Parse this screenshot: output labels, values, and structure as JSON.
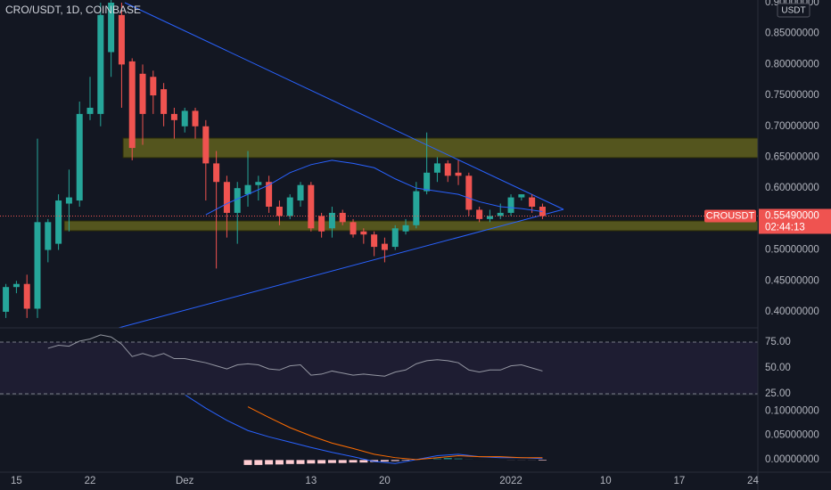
{
  "header": {
    "symbol_info": "CRO/USDT, 1D, COINBASE",
    "quote_currency": "USDT"
  },
  "chart_data": [
    {
      "type": "candlestick",
      "x": [
        -1,
        0,
        1,
        2,
        3,
        4,
        5,
        6,
        7,
        8,
        9,
        10,
        11,
        12,
        13,
        14,
        15,
        16,
        17,
        18,
        19,
        20,
        21,
        22,
        23,
        24,
        25,
        26,
        27,
        28,
        29,
        30,
        31,
        32,
        33,
        34,
        35,
        36,
        37,
        38,
        39,
        40,
        41,
        42,
        43,
        44,
        45,
        46,
        47,
        48,
        49,
        50
      ],
      "open": [
        0.4,
        0.44,
        0.445,
        0.405,
        0.5,
        0.51,
        0.575,
        0.58,
        0.72,
        0.72,
        0.82,
        0.88,
        0.805,
        0.785,
        0.78,
        0.76,
        0.72,
        0.7,
        0.725,
        0.7,
        0.64,
        0.61,
        0.56,
        0.59,
        0.605,
        0.61,
        0.57,
        0.555,
        0.58,
        0.605,
        0.555,
        0.535,
        0.56,
        0.545,
        0.53,
        0.525,
        0.51,
        0.505,
        0.53,
        0.54,
        0.595,
        0.625,
        0.64,
        0.625,
        0.62,
        0.565,
        0.55,
        0.555,
        0.56,
        0.585,
        0.585,
        0.57
      ],
      "high": [
        0.445,
        0.45,
        0.46,
        0.68,
        0.55,
        0.59,
        0.63,
        0.74,
        0.78,
        0.9,
        0.91,
        0.9,
        0.81,
        0.8,
        0.79,
        0.77,
        0.73,
        0.73,
        0.73,
        0.71,
        0.66,
        0.62,
        0.61,
        0.66,
        0.62,
        0.62,
        0.58,
        0.59,
        0.61,
        0.61,
        0.56,
        0.57,
        0.565,
        0.55,
        0.535,
        0.53,
        0.52,
        0.54,
        0.55,
        0.61,
        0.69,
        0.65,
        0.645,
        0.645,
        0.625,
        0.57,
        0.565,
        0.575,
        0.59,
        0.59,
        0.59,
        0.575
      ],
      "low": [
        0.39,
        0.43,
        0.39,
        0.39,
        0.48,
        0.5,
        0.53,
        0.57,
        0.71,
        0.7,
        0.78,
        0.73,
        0.645,
        0.67,
        0.72,
        0.7,
        0.68,
        0.69,
        0.68,
        0.58,
        0.47,
        0.52,
        0.51,
        0.57,
        0.58,
        0.56,
        0.54,
        0.55,
        0.57,
        0.53,
        0.52,
        0.52,
        0.54,
        0.52,
        0.51,
        0.49,
        0.48,
        0.5,
        0.525,
        0.535,
        0.59,
        0.61,
        0.61,
        0.605,
        0.555,
        0.545,
        0.545,
        0.55,
        0.555,
        0.58,
        0.56,
        0.55
      ],
      "close": [
        0.44,
        0.445,
        0.405,
        0.545,
        0.545,
        0.58,
        0.585,
        0.72,
        0.73,
        0.88,
        0.9,
        0.8,
        0.665,
        0.72,
        0.75,
        0.72,
        0.71,
        0.725,
        0.7,
        0.64,
        0.61,
        0.56,
        0.6,
        0.605,
        0.61,
        0.57,
        0.555,
        0.585,
        0.605,
        0.535,
        0.53,
        0.56,
        0.545,
        0.525,
        0.525,
        0.505,
        0.5,
        0.535,
        0.54,
        0.595,
        0.625,
        0.64,
        0.62,
        0.62,
        0.565,
        0.55,
        0.555,
        0.56,
        0.585,
        0.59,
        0.57,
        0.5549
      ],
      "up_color": "#26a69a",
      "down_color": "#ef5350",
      "overlay": {
        "color": "#2962ff",
        "x": [
          18,
          20,
          22,
          24,
          26,
          28,
          30,
          32,
          34,
          36,
          38,
          40,
          42,
          44,
          46,
          48,
          50
        ],
        "values": [
          0.557,
          0.575,
          0.59,
          0.605,
          0.625,
          0.638,
          0.645,
          0.64,
          0.633,
          0.615,
          0.6,
          0.595,
          0.59,
          0.578,
          0.57,
          0.567,
          0.562
        ]
      },
      "last_price": {
        "value": 0.5549,
        "label": "0.55490000"
      },
      "price_tag": "CROUSDT",
      "countdown": "02:44:13",
      "xlim": [
        -1.56,
        70.47
      ],
      "ylim": [
        0.374,
        0.9043
      ],
      "xticks": [
        {
          "value": 0,
          "label": "15"
        },
        {
          "value": 7,
          "label": "22"
        },
        {
          "value": 16,
          "label": "Dez"
        },
        {
          "value": 28,
          "label": "13"
        },
        {
          "value": 35,
          "label": "20"
        },
        {
          "value": 47,
          "label": "2022"
        },
        {
          "value": 56,
          "label": "10"
        },
        {
          "value": 63,
          "label": "17"
        },
        {
          "value": 70,
          "label": "24"
        }
      ],
      "yticks": [
        {
          "value": 0.4,
          "label": "0.40000000"
        },
        {
          "value": 0.45,
          "label": "0.45000000"
        },
        {
          "value": 0.5,
          "label": "0.50000000"
        },
        {
          "value": 0.55,
          "label": "0.55000000"
        },
        {
          "value": 0.6,
          "label": "0.60000000"
        },
        {
          "value": 0.65,
          "label": "0.65000000"
        },
        {
          "value": 0.7,
          "label": "0.70000000"
        },
        {
          "value": 0.75,
          "label": "0.75000000"
        },
        {
          "value": 0.8,
          "label": "0.80000000"
        },
        {
          "value": 0.85,
          "label": "0.85000000"
        },
        {
          "value": 0.9,
          "label": "0.90000000"
        }
      ]
    },
    {
      "type": "line",
      "x": [
        3,
        4,
        5,
        6,
        7,
        8,
        9,
        10,
        11,
        12,
        13,
        14,
        15,
        16,
        17,
        18,
        19,
        20,
        21,
        22,
        23,
        24,
        25,
        26,
        27,
        28,
        29,
        30,
        31,
        32,
        33,
        34,
        35,
        36,
        37,
        38,
        39,
        40,
        41,
        42,
        43,
        44,
        45,
        46,
        47,
        48,
        49,
        50
      ],
      "values": [
        69,
        72,
        71,
        76,
        78,
        82,
        80,
        73,
        61,
        64,
        61,
        64,
        59,
        59,
        57,
        55,
        52,
        49,
        53,
        54,
        53,
        49,
        48,
        52,
        53,
        43,
        44,
        47,
        45,
        43,
        44,
        43,
        42,
        46,
        48,
        54,
        57,
        58,
        57,
        55,
        48,
        46,
        48,
        48,
        52,
        53,
        50,
        47
      ],
      "color": "#b2b5be",
      "band_color": "#7e57c2",
      "ylim": [
        24.1,
        88.8
      ],
      "yticks": [
        {
          "value": 75,
          "label": "75.00"
        },
        {
          "value": 50,
          "label": "50.00"
        },
        {
          "value": 25,
          "label": "25.00"
        }
      ]
    },
    {
      "type": "macd",
      "series": [
        {
          "color": "#2962ff",
          "x": [
            16,
            18,
            20,
            22,
            24,
            26,
            28,
            30,
            32,
            34,
            36,
            38,
            40,
            42,
            44,
            46,
            48,
            50
          ],
          "values": [
            0.134,
            0.106,
            0.081,
            0.06,
            0.047,
            0.036,
            0.025,
            0.015,
            0.006,
            -0.004,
            -0.008,
            0,
            0.008,
            0.011,
            0.006,
            0.004,
            0.004,
            0.002
          ]
        },
        {
          "color": "#ff6d00",
          "x": [
            22,
            24,
            26,
            28,
            30,
            32,
            34,
            36,
            38,
            40,
            42,
            44,
            46,
            48,
            50
          ],
          "values": [
            0.109,
            0.087,
            0.066,
            0.049,
            0.034,
            0.023,
            0.011,
            0.004,
            0,
            0.004,
            0.008,
            0.006,
            0.006,
            0.004,
            0.004
          ]
        }
      ],
      "histogram": {
        "x": [
          22,
          23,
          24,
          25,
          26,
          27,
          28,
          29,
          30,
          31,
          32,
          33,
          34,
          35,
          36,
          37,
          38,
          39,
          40,
          41,
          42,
          43,
          44,
          45,
          46,
          47,
          48,
          49,
          50
        ],
        "values": [
          -0.012,
          -0.012,
          -0.011,
          -0.011,
          -0.01,
          -0.01,
          -0.009,
          -0.009,
          -0.008,
          -0.008,
          -0.007,
          -0.007,
          -0.006,
          -0.005,
          -0.004,
          -0.003,
          -0.002,
          0.002,
          0.003,
          0.004,
          0.003,
          0.002,
          0.001,
          -0.001,
          -0.001,
          -0.002,
          -0.002,
          -0.002,
          -0.003
        ],
        "up_color": "#26a69a",
        "down_color": "#ffcdd2"
      },
      "ylim": [
        -0.026,
        0.134
      ],
      "yticks": [
        {
          "value": 0.1,
          "label": "0.10000000"
        },
        {
          "value": 0.05,
          "label": "0.05000000"
        },
        {
          "value": 0,
          "label": "0.00000000"
        }
      ]
    }
  ]
}
